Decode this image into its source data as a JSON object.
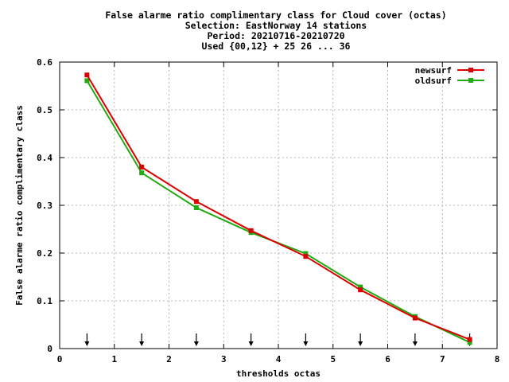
{
  "chart_data": {
    "type": "line",
    "title_lines": [
      "False alarme ratio complimentary class  for Cloud cover (octas)",
      "Selection: EastNorway     14 stations",
      "Period: 20210716-20210720",
      "Used {00,12} + 25 26 ... 36"
    ],
    "xlabel": "thresholds octas",
    "ylabel": "False alarme ratio complimentary class",
    "xlim": [
      0,
      8
    ],
    "ylim": [
      0,
      0.6
    ],
    "xticks": [
      "0",
      "1",
      "2",
      "3",
      "4",
      "5",
      "6",
      "7",
      "8"
    ],
    "yticks": [
      "0",
      "0.1",
      "0.2",
      "0.3",
      "0.4",
      "0.5",
      "0.6"
    ],
    "grid": true,
    "legend_position": "top-right",
    "x": [
      0.5,
      1.5,
      2.5,
      3.5,
      4.5,
      5.5,
      6.5,
      7.5
    ],
    "series": [
      {
        "name": "newsurf",
        "color": "#dd0000",
        "values": [
          0.573,
          0.38,
          0.308,
          0.247,
          0.193,
          0.123,
          0.064,
          0.019
        ]
      },
      {
        "name": "oldsurf",
        "color": "#22aa11",
        "values": [
          0.561,
          0.368,
          0.295,
          0.243,
          0.199,
          0.129,
          0.067,
          0.013
        ]
      }
    ],
    "threshold_arrows": [
      0.5,
      1.5,
      2.5,
      3.5,
      4.5,
      5.5,
      6.5,
      7.5
    ]
  }
}
